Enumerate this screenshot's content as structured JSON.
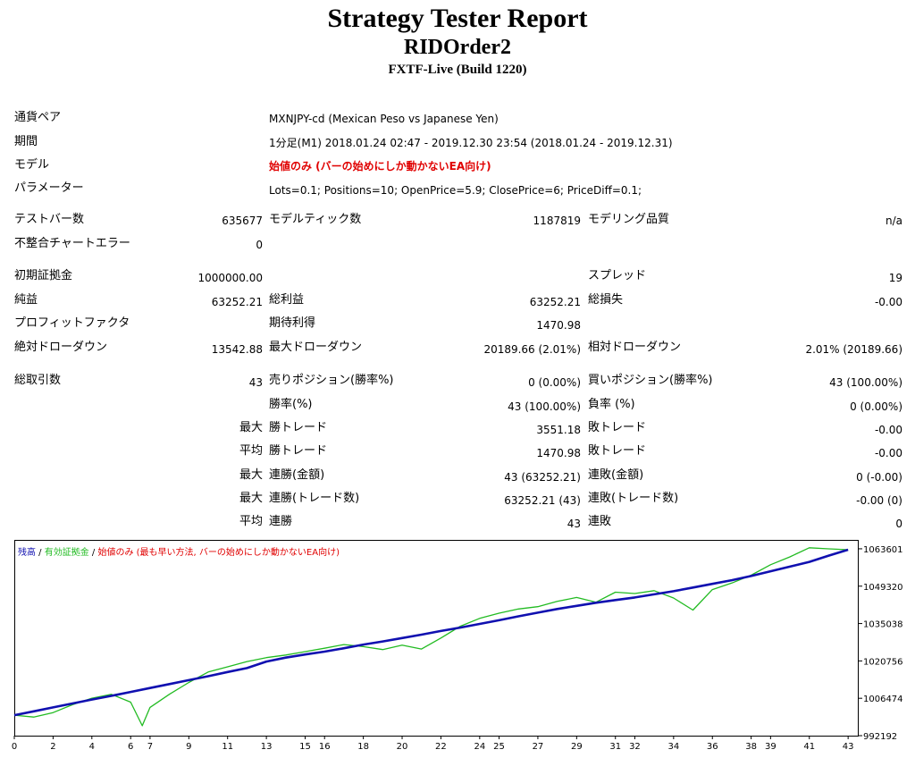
{
  "header": {
    "title": "Strategy Tester Report",
    "subtitle": "RIDOrder2",
    "server": "FXTF-Live (Build 1220)"
  },
  "info": {
    "symbol_label": "通貨ペア",
    "symbol_value": "MXNJPY-cd (Mexican Peso vs Japanese Yen)",
    "period_label": "期間",
    "period_value": "1分足(M1) 2018.01.24 02:47 - 2019.12.30 23:54 (2018.01.24 - 2019.12.31)",
    "model_label": "モデル",
    "model_value": "始値のみ (バーの始めにしか動かないEA向け)",
    "params_label": "パラメーター",
    "params_value": "Lots=0.1; Positions=10; OpenPrice=5.9; ClosePrice=6; PriceDiff=0.1;"
  },
  "stats": {
    "bars_label": "テストバー数",
    "bars_value": "635677",
    "ticks_label": "モデルティック数",
    "ticks_value": "1187819",
    "quality_label": "モデリング品質",
    "quality_value": "n/a",
    "mismatch_label": "不整合チャートエラー",
    "mismatch_value": "0",
    "deposit_label": "初期証拠金",
    "deposit_value": "1000000.00",
    "spread_label": "スプレッド",
    "spread_value": "19",
    "netprofit_label": "純益",
    "netprofit_value": "63252.21",
    "grossprofit_label": "総利益",
    "grossprofit_value": "63252.21",
    "grossloss_label": "総損失",
    "grossloss_value": "-0.00",
    "pf_label": "プロフィットファクタ",
    "payoff_label": "期待利得",
    "payoff_value": "1470.98",
    "absdd_label": "絶対ドローダウン",
    "absdd_value": "13542.88",
    "maxdd_label": "最大ドローダウン",
    "maxdd_value": "20189.66 (2.01%)",
    "reldd_label": "相対ドローダウン",
    "reldd_value": "2.01% (20189.66)",
    "trades_label": "総取引数",
    "trades_value": "43",
    "short_label": "売りポジション(勝率%)",
    "short_value": "0 (0.00%)",
    "long_label": "買いポジション(勝率%)",
    "long_value": "43 (100.00%)",
    "win_label": "勝率(%)",
    "win_value": "43 (100.00%)",
    "loss_label": "負率 (%)",
    "loss_value": "0 (0.00%)",
    "max_label": "最大",
    "avg_label": "平均",
    "largest_win_label": "勝トレード",
    "largest_win_value": "3551.18",
    "largest_loss_label": "敗トレード",
    "largest_loss_value": "-0.00",
    "avg_win_label": "勝トレード",
    "avg_win_value": "1470.98",
    "avg_loss_label": "敗トレード",
    "avg_loss_value": "-0.00",
    "max_consec_wins_label": "連勝(金額)",
    "max_consec_wins_value": "43 (63252.21)",
    "max_consec_losses_label": "連敗(金額)",
    "max_consec_losses_value": "0 (-0.00)",
    "max_consec_profit_label": "連勝(トレード数)",
    "max_consec_profit_value": "63252.21 (43)",
    "max_consec_loss_label": "連敗(トレード数)",
    "max_consec_loss_value": "-0.00 (0)",
    "avg_consec_wins_label": "連勝",
    "avg_consec_wins_value": "43",
    "avg_consec_losses_label": "連敗",
    "avg_consec_losses_value": "0"
  },
  "chart_data": {
    "type": "line",
    "legend": {
      "balance": "残高",
      "sep1": " / ",
      "equity": "有効証拠金",
      "sep2": " / ",
      "model": "始値のみ (最も早い方法, バーの始めにしか動かないEA向け)"
    },
    "colors": {
      "balance": "#1010b0",
      "equity": "#22bb22",
      "model": "#e00000",
      "axis": "#000000"
    },
    "x_ticks": [
      "0",
      "2",
      "4",
      "6",
      "7",
      "9",
      "11",
      "13",
      "15",
      "16",
      "18",
      "20",
      "22",
      "24",
      "25",
      "27",
      "29",
      "31",
      "32",
      "34",
      "36",
      "38",
      "39",
      "41",
      "43"
    ],
    "x_range": [
      0,
      43.5
    ],
    "y_ticks": [
      "1063601",
      "1049320",
      "1035038",
      "1020756",
      "1006474",
      "992192"
    ],
    "y_range": [
      992192,
      1067000
    ],
    "series": [
      {
        "name": "残高",
        "x": [
          0,
          1,
          2,
          3,
          4,
          5,
          6,
          7,
          8,
          9,
          10,
          11,
          12,
          13,
          14,
          15,
          16,
          17,
          18,
          19,
          20,
          21,
          22,
          23,
          24,
          25,
          26,
          27,
          28,
          29,
          30,
          31,
          32,
          33,
          34,
          35,
          36,
          37,
          38,
          39,
          40,
          41,
          42,
          43
        ],
        "y": [
          1000000,
          1001500,
          1003000,
          1004500,
          1006000,
          1007400,
          1008900,
          1010400,
          1011900,
          1013400,
          1014900,
          1016500,
          1018000,
          1020500,
          1022000,
          1023200,
          1024300,
          1025600,
          1027000,
          1028200,
          1029500,
          1030800,
          1032200,
          1033500,
          1034900,
          1036300,
          1037800,
          1039200,
          1040600,
          1041800,
          1043000,
          1044000,
          1045000,
          1046200,
          1047400,
          1048800,
          1050200,
          1051600,
          1053200,
          1055000,
          1056800,
          1058600,
          1061000,
          1063252
        ]
      },
      {
        "name": "有効証拠金",
        "x": [
          0,
          1,
          2,
          3,
          4,
          5,
          6,
          6.6,
          7,
          8,
          9,
          10,
          11,
          12,
          13,
          14,
          15,
          16,
          17,
          18,
          19,
          20,
          21,
          22,
          23,
          24,
          25,
          26,
          27,
          28,
          29,
          30,
          31,
          32,
          33,
          34,
          35,
          36,
          37,
          38,
          39,
          40,
          41,
          42,
          43
        ],
        "y": [
          1000000,
          999300,
          1001000,
          1004000,
          1006500,
          1008000,
          1005000,
          996000,
          1003000,
          1008000,
          1012500,
          1016500,
          1018500,
          1020500,
          1022000,
          1023000,
          1024300,
          1025600,
          1027000,
          1026200,
          1025100,
          1026800,
          1025300,
          1029500,
          1034000,
          1037000,
          1039000,
          1040600,
          1041500,
          1043500,
          1045000,
          1043200,
          1047000,
          1046500,
          1047600,
          1044800,
          1040200,
          1048000,
          1050500,
          1053500,
          1057500,
          1060500,
          1064000,
          1063600,
          1063252
        ]
      }
    ]
  }
}
